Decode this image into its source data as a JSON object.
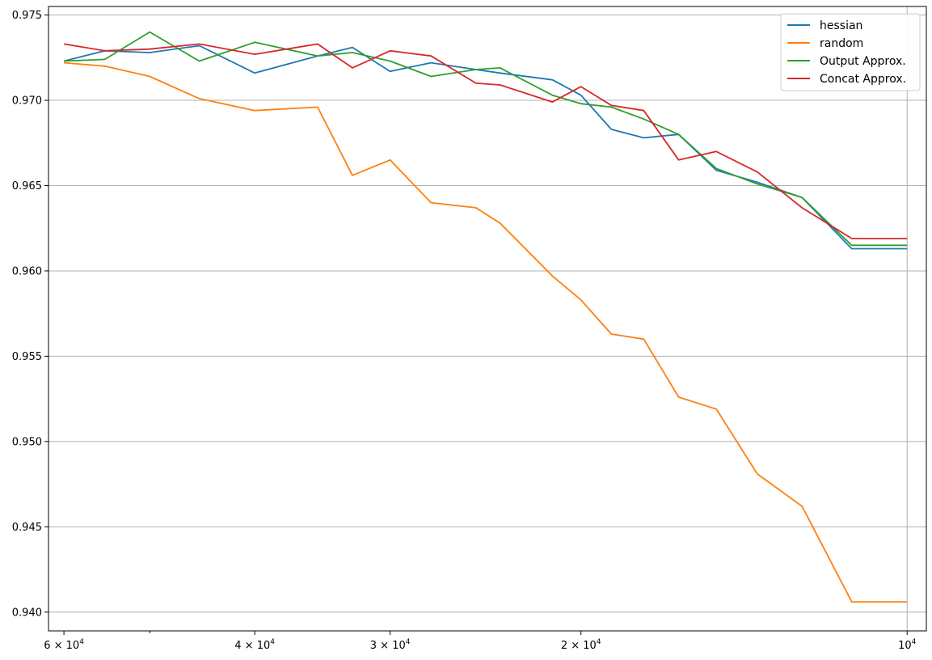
{
  "chart_data": {
    "type": "line",
    "title": "",
    "xlabel": "",
    "ylabel": "",
    "x_scale": "log",
    "x_reversed": true,
    "xlim": [
      62000,
      9600
    ],
    "ylim": [
      0.9389,
      0.9755
    ],
    "grid": "y-axis, plus a vertical gridline at 10^4",
    "legend_position": "upper right",
    "x": [
      60000,
      55000,
      50000,
      45000,
      40000,
      35000,
      32500,
      30000,
      27500,
      25000,
      23750,
      21250,
      20000,
      18750,
      17500,
      16250,
      15000,
      13750,
      12500,
      11250,
      10000
    ],
    "y_ticks": [
      {
        "value": 0.94,
        "label": "0.940"
      },
      {
        "value": 0.945,
        "label": "0.945"
      },
      {
        "value": 0.95,
        "label": "0.950"
      },
      {
        "value": 0.955,
        "label": "0.955"
      },
      {
        "value": 0.96,
        "label": "0.960"
      },
      {
        "value": 0.965,
        "label": "0.965"
      },
      {
        "value": 0.97,
        "label": "0.970"
      },
      {
        "value": 0.975,
        "label": "0.975"
      }
    ],
    "x_ticks": [
      {
        "value": 60000,
        "base": "6 × 10",
        "exp": "4"
      },
      {
        "value": 40000,
        "base": "4 × 10",
        "exp": "4"
      },
      {
        "value": 30000,
        "base": "3 × 10",
        "exp": "4"
      },
      {
        "value": 20000,
        "base": "2 × 10",
        "exp": "4"
      },
      {
        "value": 10000,
        "base": "10",
        "exp": "4"
      }
    ],
    "x_minor_ticks": [
      50000
    ],
    "series": [
      {
        "name": "hessian",
        "color": "#1f77b4",
        "values": [
          0.9723,
          0.9729,
          0.9728,
          0.9732,
          0.9716,
          0.9726,
          0.9731,
          0.9717,
          0.9722,
          0.9718,
          0.9716,
          0.9712,
          0.9703,
          0.9683,
          0.9678,
          0.968,
          0.9659,
          0.9652,
          0.9643,
          0.9613,
          0.9613
        ]
      },
      {
        "name": "random",
        "color": "#ff7f0e",
        "values": [
          0.9722,
          0.972,
          0.9714,
          0.9701,
          0.9694,
          0.9696,
          0.9656,
          0.9665,
          0.964,
          0.9637,
          0.9628,
          0.9597,
          0.9583,
          0.9563,
          0.956,
          0.9526,
          0.9519,
          0.9481,
          0.9462,
          0.9406,
          0.9406
        ]
      },
      {
        "name": "Output Approx.",
        "color": "#2ca02c",
        "values": [
          0.9723,
          0.9724,
          0.974,
          0.9723,
          0.9734,
          0.9726,
          0.9728,
          0.9723,
          0.9714,
          0.9718,
          0.9719,
          0.9703,
          0.9698,
          0.9696,
          0.9689,
          0.968,
          0.966,
          0.9651,
          0.9643,
          0.9615,
          0.9615
        ]
      },
      {
        "name": "Concat Approx.",
        "color": "#d62728",
        "values": [
          0.9733,
          0.9729,
          0.973,
          0.9733,
          0.9727,
          0.9733,
          0.9719,
          0.9729,
          0.9726,
          0.971,
          0.9709,
          0.9699,
          0.9708,
          0.9697,
          0.9694,
          0.9665,
          0.967,
          0.9658,
          0.9637,
          0.9619,
          0.9619
        ]
      }
    ]
  }
}
